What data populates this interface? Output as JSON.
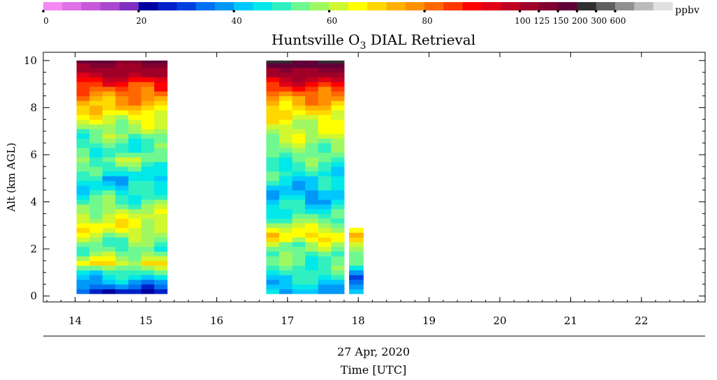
{
  "chart_data": {
    "type": "heatmap",
    "title": "Huntsville O",
    "title_subscript": "3",
    "title_suffix": " DIAL Retrieval",
    "xlabel_date": "27 Apr, 2020",
    "xlabel": "Time [UTC]",
    "ylabel": "Alt (km AGL)",
    "xlim": [
      13.55,
      22.9
    ],
    "ylim": [
      -0.25,
      10.35
    ],
    "x_ticks": [
      "14",
      "15",
      "16",
      "17",
      "18",
      "19",
      "20",
      "21",
      "22"
    ],
    "y_ticks": [
      "0",
      "2",
      "4",
      "6",
      "8",
      "10"
    ],
    "colorbar": {
      "unit": "ppbv",
      "colors": [
        "#f38af3",
        "#e070e8",
        "#c85ad8",
        "#a848d0",
        "#8030c0",
        "#0000a0",
        "#0020c8",
        "#0040e0",
        "#0070f0",
        "#0098f8",
        "#00c8ff",
        "#00e8e8",
        "#30f0c0",
        "#70f890",
        "#a0f860",
        "#d0f830",
        "#ffff00",
        "#ffd800",
        "#ffb000",
        "#ff9000",
        "#ff6800",
        "#ff3800",
        "#ff0000",
        "#e00018",
        "#c00020",
        "#a00028",
        "#800030",
        "#600038",
        "#303030",
        "#606060",
        "#909090",
        "#bbbbbb",
        "#e0e0e0"
      ],
      "labels": [
        {
          "text": "0",
          "bin": 0
        },
        {
          "text": "20",
          "bin": 5
        },
        {
          "text": "40",
          "bin": 10
        },
        {
          "text": "60",
          "bin": 15
        },
        {
          "text": "80",
          "bin": 20
        },
        {
          "text": "100",
          "bin": 25
        },
        {
          "text": "125",
          "bin": 26
        },
        {
          "text": "150",
          "bin": 27
        },
        {
          "text": "200",
          "bin": 28
        },
        {
          "text": "300",
          "bin": 29
        },
        {
          "text": "600",
          "bin": 30
        }
      ]
    },
    "time_blocks": [
      {
        "x_start": 14.02,
        "x_end": 15.3,
        "alt_top": 10.0,
        "columns": 7
      },
      {
        "x_start": 16.7,
        "x_end": 17.8,
        "alt_top": 10.0,
        "columns": 6
      },
      {
        "x_start": 17.87,
        "x_end": 18.07,
        "alt_top": 2.9,
        "columns": 1
      }
    ],
    "profile_block1": [
      {
        "alt": 0.1,
        "o3": 18
      },
      {
        "alt": 0.25,
        "o3": 30
      },
      {
        "alt": 0.5,
        "o3": 38
      },
      {
        "alt": 0.8,
        "o3": 44
      },
      {
        "alt": 1.1,
        "o3": 52
      },
      {
        "alt": 1.4,
        "o3": 66
      },
      {
        "alt": 1.7,
        "o3": 58
      },
      {
        "alt": 2.0,
        "o3": 52
      },
      {
        "alt": 2.3,
        "o3": 54
      },
      {
        "alt": 2.6,
        "o3": 60
      },
      {
        "alt": 3.0,
        "o3": 66
      },
      {
        "alt": 3.4,
        "o3": 62
      },
      {
        "alt": 3.8,
        "o3": 56
      },
      {
        "alt": 4.2,
        "o3": 50
      },
      {
        "alt": 4.6,
        "o3": 46
      },
      {
        "alt": 5.0,
        "o3": 44
      },
      {
        "alt": 5.4,
        "o3": 50
      },
      {
        "alt": 5.8,
        "o3": 56
      },
      {
        "alt": 6.2,
        "o3": 50
      },
      {
        "alt": 6.6,
        "o3": 52
      },
      {
        "alt": 7.0,
        "o3": 56
      },
      {
        "alt": 7.4,
        "o3": 62
      },
      {
        "alt": 7.8,
        "o3": 68
      },
      {
        "alt": 8.2,
        "o3": 74
      },
      {
        "alt": 8.6,
        "o3": 80
      },
      {
        "alt": 9.0,
        "o3": 88
      },
      {
        "alt": 9.4,
        "o3": 100
      },
      {
        "alt": 9.8,
        "o3": 125
      },
      {
        "alt": 10.0,
        "o3": 150
      }
    ],
    "profile_block2": [
      {
        "alt": 0.1,
        "o3": 40
      },
      {
        "alt": 0.4,
        "o3": 42
      },
      {
        "alt": 0.7,
        "o3": 46
      },
      {
        "alt": 1.0,
        "o3": 50
      },
      {
        "alt": 1.4,
        "o3": 52
      },
      {
        "alt": 1.8,
        "o3": 52
      },
      {
        "alt": 2.2,
        "o3": 58
      },
      {
        "alt": 2.5,
        "o3": 70
      },
      {
        "alt": 2.8,
        "o3": 64
      },
      {
        "alt": 3.2,
        "o3": 54
      },
      {
        "alt": 3.6,
        "o3": 48
      },
      {
        "alt": 4.0,
        "o3": 44
      },
      {
        "alt": 4.4,
        "o3": 40
      },
      {
        "alt": 4.8,
        "o3": 44
      },
      {
        "alt": 5.2,
        "o3": 48
      },
      {
        "alt": 5.6,
        "o3": 50
      },
      {
        "alt": 6.0,
        "o3": 54
      },
      {
        "alt": 6.4,
        "o3": 56
      },
      {
        "alt": 6.8,
        "o3": 60
      },
      {
        "alt": 7.2,
        "o3": 62
      },
      {
        "alt": 7.6,
        "o3": 64
      },
      {
        "alt": 8.0,
        "o3": 70
      },
      {
        "alt": 8.4,
        "o3": 78
      },
      {
        "alt": 8.8,
        "o3": 86
      },
      {
        "alt": 9.2,
        "o3": 96
      },
      {
        "alt": 9.6,
        "o3": 125
      },
      {
        "alt": 10.0,
        "o3": 200
      }
    ],
    "profile_block3": [
      {
        "alt": 0.1,
        "o3": 44
      },
      {
        "alt": 0.5,
        "o3": 42
      },
      {
        "alt": 0.9,
        "o3": 36
      },
      {
        "alt": 1.3,
        "o3": 48
      },
      {
        "alt": 1.8,
        "o3": 52
      },
      {
        "alt": 2.3,
        "o3": 62
      },
      {
        "alt": 2.6,
        "o3": 72
      },
      {
        "alt": 2.9,
        "o3": 64
      }
    ]
  }
}
